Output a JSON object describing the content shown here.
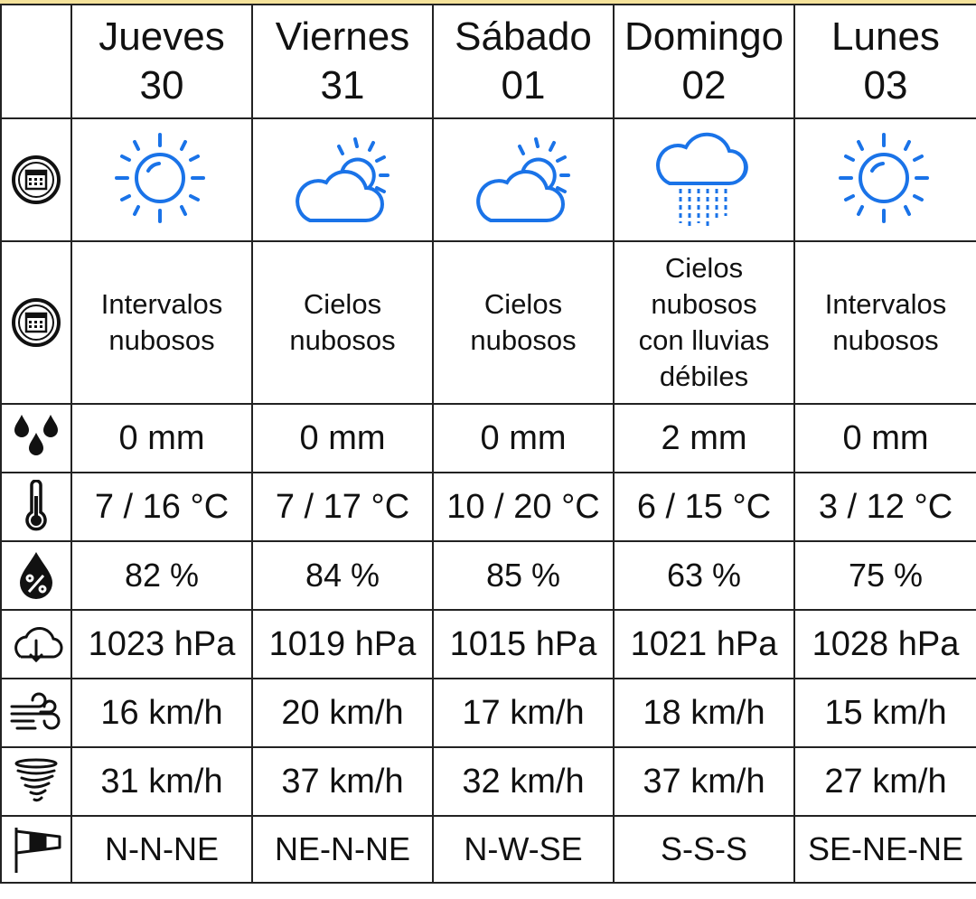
{
  "days": [
    {
      "name": "Jueves",
      "date": "30",
      "sky_icon": "sun-icon",
      "description": [
        "Intervalos",
        "nubosos"
      ],
      "precipitation": "0 mm",
      "temperature": "7 / 16 °C",
      "humidity": "82 %",
      "pressure": "1023 hPa",
      "wind": "16 km/h",
      "gust": "31 km/h",
      "direction": "N-N-NE"
    },
    {
      "name": "Viernes",
      "date": "31",
      "sky_icon": "sun-behind-cloud-icon",
      "description": [
        "Cielos",
        "nubosos"
      ],
      "precipitation": "0 mm",
      "temperature": "7 / 17 °C",
      "humidity": "84 %",
      "pressure": "1019 hPa",
      "wind": "20 km/h",
      "gust": "37 km/h",
      "direction": "NE-N-NE"
    },
    {
      "name": "Sábado",
      "date": "01",
      "sky_icon": "sun-behind-cloud-icon",
      "description": [
        "Cielos",
        "nubosos"
      ],
      "precipitation": "0 mm",
      "temperature": "10 / 20 °C",
      "humidity": "85 %",
      "pressure": "1015 hPa",
      "wind": "17 km/h",
      "gust": "32 km/h",
      "direction": "N-W-SE"
    },
    {
      "name": "Domingo",
      "date": "02",
      "sky_icon": "rain-cloud-icon",
      "description": [
        "Cielos",
        "nubosos",
        "con lluvias",
        "débiles"
      ],
      "precipitation": "2 mm",
      "temperature": "6 / 15 °C",
      "humidity": "63 %",
      "pressure": "1021 hPa",
      "wind": "18 km/h",
      "gust": "37 km/h",
      "direction": "S-S-S"
    },
    {
      "name": "Lunes",
      "date": "03",
      "sky_icon": "sun-icon",
      "description": [
        "Intervalos",
        "nubosos"
      ],
      "precipitation": "0 mm",
      "temperature": "3 / 12 °C",
      "humidity": "75 %",
      "pressure": "1028 hPa",
      "wind": "15 km/h",
      "gust": "27 km/h",
      "direction": "SE-NE-NE"
    }
  ],
  "row_icons": {
    "sky": "calendar-icon",
    "description": "calendar-icon",
    "precipitation": "rain-drops-icon",
    "temperature": "thermometer-icon",
    "humidity": "humidity-drop-icon",
    "pressure": "cloud-pressure-icon",
    "wind": "wind-icon",
    "gust": "tornado-gust-icon",
    "direction": "windsock-icon"
  },
  "colors": {
    "weather_icon": "#1a73e8",
    "border": "#222222",
    "top_accent": "#f4e29a"
  }
}
